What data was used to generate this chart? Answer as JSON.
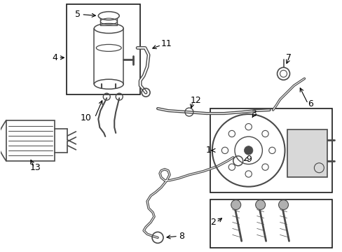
{
  "bg_color": "#ffffff",
  "line_color": "#4a4a4a",
  "box_color": "#1a1a1a",
  "label_color": "#000000",
  "fig_width": 4.89,
  "fig_height": 3.6,
  "dpi": 100
}
